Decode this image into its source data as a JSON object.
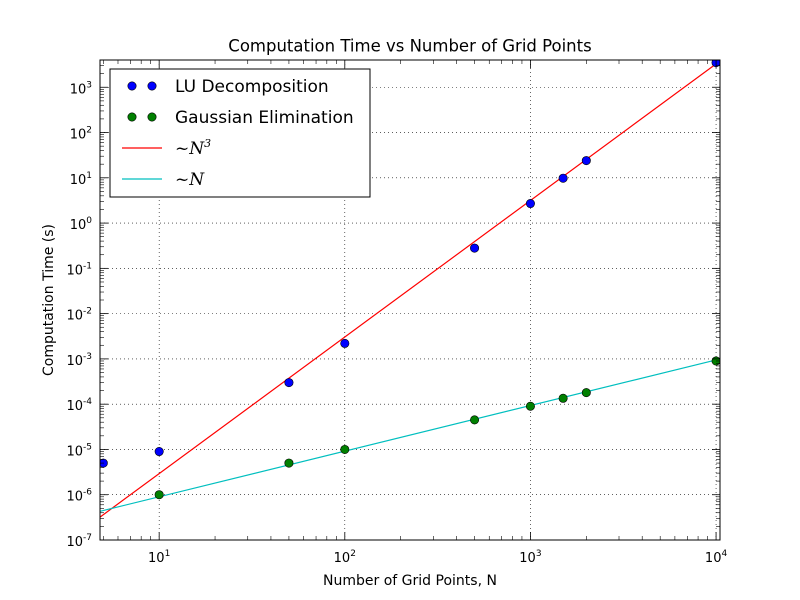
{
  "chart_data": {
    "type": "scatter",
    "title": "Computation Time vs Number of Grid Points",
    "xlabel": "Number of Grid Points, N",
    "ylabel": "Computation Time (s)",
    "xscale": "log",
    "yscale": "log",
    "xlim": [
      4.8,
      10500
    ],
    "ylim": [
      1e-07,
      4000
    ],
    "grid": true,
    "legend": "top-left",
    "x_ticks": [
      {
        "base": "10",
        "exp": "1",
        "value": 10
      },
      {
        "base": "10",
        "exp": "2",
        "value": 100
      },
      {
        "base": "10",
        "exp": "3",
        "value": 1000
      },
      {
        "base": "10",
        "exp": "4",
        "value": 10000
      }
    ],
    "y_ticks": [
      {
        "base": "10",
        "exp": "-7",
        "value": 1e-07
      },
      {
        "base": "10",
        "exp": "-6",
        "value": 1e-06
      },
      {
        "base": "10",
        "exp": "-5",
        "value": 1e-05
      },
      {
        "base": "10",
        "exp": "-4",
        "value": 0.0001
      },
      {
        "base": "10",
        "exp": "-3",
        "value": 0.001
      },
      {
        "base": "10",
        "exp": "-2",
        "value": 0.01
      },
      {
        "base": "10",
        "exp": "-1",
        "value": 0.1
      },
      {
        "base": "10",
        "exp": "0",
        "value": 1
      },
      {
        "base": "10",
        "exp": "1",
        "value": 10
      },
      {
        "base": "10",
        "exp": "2",
        "value": 100
      },
      {
        "base": "10",
        "exp": "3",
        "value": 1000
      }
    ],
    "series": [
      {
        "name": "LU Decomposition",
        "kind": "markers",
        "color": "#0000ff",
        "x": [
          5,
          10,
          50,
          100,
          500,
          1000,
          1500,
          2000,
          10000
        ],
        "y": [
          5e-06,
          9e-06,
          0.0003,
          0.0022,
          0.28,
          2.7,
          9.8,
          24,
          3500
        ]
      },
      {
        "name": "Gaussian Elimination",
        "kind": "markers",
        "color": "#008000",
        "x": [
          10,
          50,
          100,
          500,
          1000,
          1500,
          2000,
          10000
        ],
        "y": [
          1e-06,
          5e-06,
          1e-05,
          4.5e-05,
          9e-05,
          0.000135,
          0.00018,
          0.0009
        ]
      },
      {
        "name": "~N",
        "sup": "3",
        "kind": "line",
        "color": "#ff0000",
        "x": [
          4.8,
          10500
        ],
        "y": [
          3.2e-07,
          3800
        ]
      },
      {
        "name": "~N",
        "sup": "",
        "kind": "line",
        "color": "#00bfbf",
        "x": [
          4.8,
          10000
        ],
        "y": [
          4.3e-07,
          0.00095
        ]
      }
    ]
  }
}
